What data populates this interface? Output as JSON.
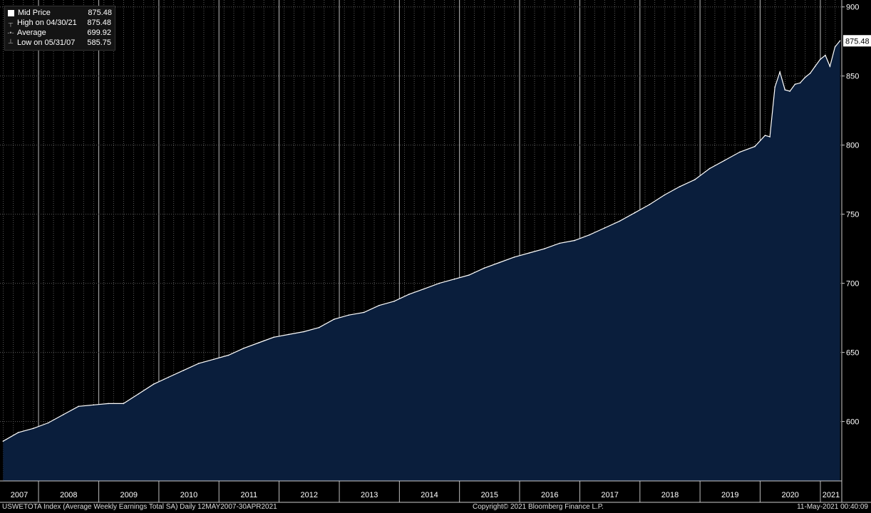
{
  "legend": {
    "rows": [
      {
        "icon": "legend-box-icon",
        "label": "Mid Price",
        "value": "875.48"
      },
      {
        "icon": "high-marker-icon",
        "label": "High on 04/30/21",
        "value": "875.48"
      },
      {
        "icon": "average-marker-icon",
        "label": "Average",
        "value": "699.92"
      },
      {
        "icon": "low-marker-icon",
        "label": "Low on 05/31/07",
        "value": "585.75"
      }
    ]
  },
  "last_price_label": "875.48",
  "footer": {
    "left": "USWETOTA Index (Average Weekly Earnings Total SA)  Daily 12MAY2007-30APR2021",
    "center": "Copyright© 2021 Bloomberg Finance L.P.",
    "right": "11-May-2021 00:40:09"
  },
  "colors": {
    "background": "#000000",
    "area_fill": "#0a1e3c",
    "line": "#ffffff",
    "grid": "#5a5a5a"
  },
  "chart_data": {
    "type": "area",
    "series": [
      {
        "name": "Mid Price",
        "x": [
          "2007-05-31",
          "2007-08-31",
          "2007-11-30",
          "2008-02-29",
          "2008-05-31",
          "2008-08-31",
          "2008-11-30",
          "2009-02-28",
          "2009-05-31",
          "2009-08-31",
          "2009-11-30",
          "2010-02-28",
          "2010-05-31",
          "2010-08-31",
          "2010-11-30",
          "2011-02-28",
          "2011-05-31",
          "2011-08-31",
          "2011-11-30",
          "2012-02-29",
          "2012-05-31",
          "2012-08-31",
          "2012-11-30",
          "2013-02-28",
          "2013-05-31",
          "2013-08-31",
          "2013-11-30",
          "2014-02-28",
          "2014-05-31",
          "2014-08-31",
          "2014-11-30",
          "2015-02-28",
          "2015-05-31",
          "2015-08-31",
          "2015-11-30",
          "2016-02-29",
          "2016-05-31",
          "2016-08-31",
          "2016-11-30",
          "2017-02-28",
          "2017-05-31",
          "2017-08-31",
          "2017-11-30",
          "2018-02-28",
          "2018-05-31",
          "2018-08-31",
          "2018-11-30",
          "2019-02-28",
          "2019-05-31",
          "2019-08-31",
          "2019-11-30",
          "2020-01-31",
          "2020-02-29",
          "2020-03-31",
          "2020-04-30",
          "2020-05-31",
          "2020-06-30",
          "2020-07-31",
          "2020-08-31",
          "2020-09-30",
          "2020-10-31",
          "2020-11-30",
          "2020-12-31",
          "2021-01-31",
          "2021-02-28",
          "2021-03-31",
          "2021-04-30"
        ],
        "y": [
          585.75,
          592,
          595,
          599,
          605,
          611,
          612,
          613,
          613,
          620,
          627,
          632,
          637,
          642,
          645,
          648,
          653,
          657,
          661,
          663,
          665,
          668,
          674,
          677,
          679,
          684,
          687,
          692,
          696,
          700,
          703,
          706,
          711,
          715,
          719,
          722,
          725,
          729,
          731,
          735,
          740,
          745,
          751,
          757,
          764,
          770,
          775,
          783,
          789,
          795,
          799,
          807,
          806,
          842,
          853,
          840,
          839,
          844,
          845,
          849,
          852,
          857,
          862,
          865,
          857,
          871,
          875.48
        ]
      }
    ],
    "x_tick_labels": [
      "2007",
      "2008",
      "2009",
      "2010",
      "2011",
      "2012",
      "2013",
      "2014",
      "2015",
      "2016",
      "2017",
      "2018",
      "2019",
      "2020",
      "2021"
    ],
    "y_ticks": [
      600,
      650,
      700,
      750,
      800,
      850,
      900
    ],
    "ylim": [
      557,
      905
    ],
    "xlim": [
      "2007-05-12",
      "2021-05-11"
    ],
    "y_axis_side": "right",
    "grid": true,
    "legend_position": "top-left",
    "last_value_marker": 875.48
  }
}
